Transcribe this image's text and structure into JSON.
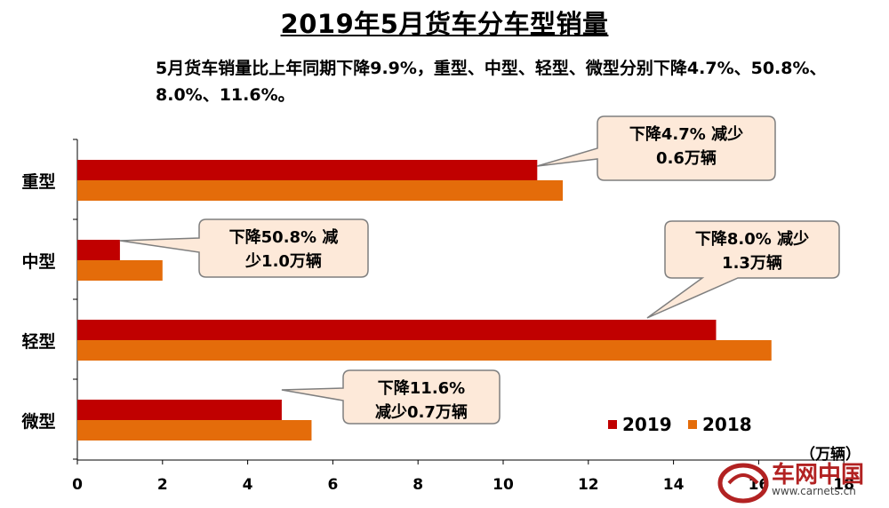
{
  "title": "2019年5月货车分车型销量",
  "subtitle": "5月货车销量比上年同期下降9.9%，重型、中型、轻型、微型分别下降4.7%、50.8%、8.0%、11.6%。",
  "unit_label": "（万辆）",
  "watermark": {
    "text": "车网中国",
    "url": "www.carnets.cn"
  },
  "colors": {
    "series2019": "#c00000",
    "series2018": "#e46c0a",
    "callout_fill": "#fde9d9",
    "callout_stroke": "#7f7f7f"
  },
  "chart_data": {
    "type": "bar",
    "orientation": "horizontal",
    "title": "2019年5月货车分车型销量",
    "categories": [
      "重型",
      "中型",
      "轻型",
      "微型"
    ],
    "series": [
      {
        "name": "2019",
        "values": [
          10.8,
          1.0,
          15.0,
          4.8
        ]
      },
      {
        "name": "2018",
        "values": [
          11.4,
          2.0,
          16.3,
          5.5
        ]
      }
    ],
    "xlim": [
      0,
      18
    ],
    "xticks": [
      "0",
      "2",
      "4",
      "6",
      "8",
      "10",
      "12",
      "14",
      "16",
      "18"
    ],
    "xunit": "（万辆）",
    "legend": {
      "position": "bottom-right",
      "entries": [
        "2019",
        "2018"
      ]
    },
    "annotations": [
      {
        "category": "重型",
        "lines": [
          "下降4.7% 减少",
          "0.6万辆"
        ]
      },
      {
        "category": "中型",
        "lines": [
          "下降50.8% 减",
          "少1.0万辆"
        ]
      },
      {
        "category": "轻型",
        "lines": [
          "下降8.0% 减少",
          "1.3万辆"
        ]
      },
      {
        "category": "微型",
        "lines": [
          "下降11.6%",
          "减少0.7万辆"
        ]
      }
    ]
  }
}
